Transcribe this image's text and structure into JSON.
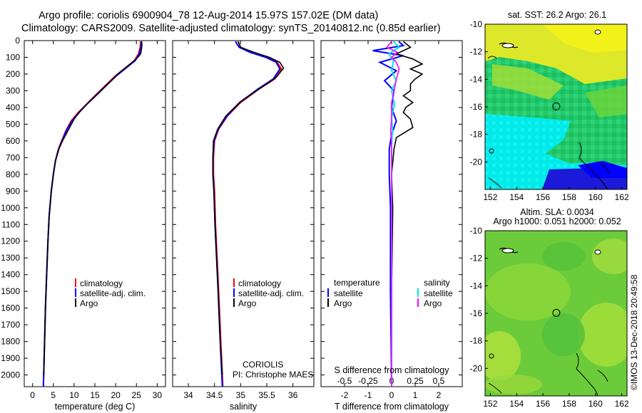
{
  "header": {
    "title_line1": "Argo profile: coriolis 6900904_78 12-Aug-2014 15.97S 157.02E (DM data)",
    "title_line2": "Climatology: CARS2009. Satellite-adjusted climatology: synTS_20140812.nc (0.85d earlier)"
  },
  "colors": {
    "climatology": "#ff0000",
    "satellite": "#0000ff",
    "argo": "#000000",
    "sal_satellite": "#00e5ee",
    "sal_climatology": "#ff00ff"
  },
  "chart_data": [
    {
      "type": "line",
      "name": "temperature-profile",
      "xlabel": "temperature (deg C)",
      "ylabel": "",
      "xlim": [
        -2,
        32
      ],
      "ylim": [
        2070,
        0
      ],
      "x_ticks": [
        "0",
        "5",
        "10",
        "15",
        "20",
        "25",
        "30"
      ],
      "y_ticks": [
        "0",
        "100",
        "200",
        "300",
        "400",
        "500",
        "600",
        "700",
        "800",
        "900",
        "1000",
        "1100",
        "1200",
        "1300",
        "1400",
        "1500",
        "1600",
        "1700",
        "1800",
        "1900",
        "2000"
      ],
      "legend": [
        "climatology",
        "satellite-adj. clim.",
        "Argo"
      ],
      "series": [
        {
          "name": "climatology",
          "color": "#ff0000",
          "points": [
            [
              26.0,
              5
            ],
            [
              25.9,
              40
            ],
            [
              25.5,
              80
            ],
            [
              24.5,
              120
            ],
            [
              22.5,
              160
            ],
            [
              20.0,
              210
            ],
            [
              17.5,
              270
            ],
            [
              15.0,
              330
            ],
            [
              13.0,
              380
            ],
            [
              11.0,
              430
            ],
            [
              9.3,
              480
            ],
            [
              8.0,
              540
            ],
            [
              7.0,
              600
            ],
            [
              6.2,
              650
            ],
            [
              5.5,
              720
            ],
            [
              5.0,
              800
            ],
            [
              4.5,
              900
            ],
            [
              4.0,
              1050
            ],
            [
              3.7,
              1200
            ],
            [
              3.4,
              1400
            ],
            [
              3.1,
              1600
            ],
            [
              2.9,
              1800
            ],
            [
              2.6,
              2070
            ]
          ]
        },
        {
          "name": "satellite-adj. clim.",
          "color": "#0000ff",
          "points": [
            [
              26.2,
              5
            ],
            [
              26.1,
              40
            ],
            [
              25.7,
              80
            ],
            [
              24.7,
              120
            ],
            [
              22.7,
              160
            ],
            [
              20.2,
              210
            ],
            [
              17.7,
              270
            ],
            [
              15.2,
              330
            ],
            [
              13.1,
              380
            ],
            [
              11.2,
              430
            ],
            [
              9.5,
              480
            ],
            [
              8.1,
              540
            ],
            [
              7.1,
              600
            ],
            [
              6.3,
              650
            ],
            [
              5.5,
              720
            ],
            [
              5.0,
              800
            ],
            [
              4.5,
              900
            ],
            [
              4.0,
              1050
            ],
            [
              3.7,
              1200
            ],
            [
              3.4,
              1400
            ],
            [
              3.1,
              1600
            ],
            [
              2.9,
              1800
            ],
            [
              2.6,
              2070
            ]
          ]
        },
        {
          "name": "Argo",
          "color": "#000000",
          "points": [
            [
              26.3,
              5
            ],
            [
              26.3,
              40
            ],
            [
              26.0,
              80
            ],
            [
              25.0,
              110
            ],
            [
              23.5,
              140
            ],
            [
              21.0,
              190
            ],
            [
              18.5,
              250
            ],
            [
              16.0,
              310
            ],
            [
              13.5,
              370
            ],
            [
              11.5,
              420
            ],
            [
              10.0,
              470
            ],
            [
              8.5,
              540
            ],
            [
              7.2,
              600
            ],
            [
              6.3,
              650
            ],
            [
              5.5,
              720
            ],
            [
              5.0,
              800
            ],
            [
              4.5,
              900
            ],
            [
              4.0,
              1050
            ],
            [
              3.7,
              1200
            ],
            [
              3.4,
              1400
            ],
            [
              3.1,
              1600
            ],
            [
              2.9,
              1800
            ],
            [
              2.7,
              2000
            ]
          ]
        }
      ]
    },
    {
      "type": "line",
      "name": "salinity-profile",
      "xlabel": "salinity",
      "ylabel": "",
      "xlim": [
        33.7,
        36.4
      ],
      "ylim": [
        2070,
        0
      ],
      "x_ticks": [
        "34",
        "34.5",
        "35",
        "35.5",
        "36"
      ],
      "legend": [
        "climatology",
        "satellite-adj. clim.",
        "Argo"
      ],
      "annotations": [
        "CORIOLIS",
        "PI: Christophe MAES"
      ],
      "series": [
        {
          "name": "climatology",
          "color": "#ff0000",
          "points": [
            [
              34.95,
              5
            ],
            [
              35.0,
              40
            ],
            [
              35.2,
              70
            ],
            [
              35.5,
              100
            ],
            [
              35.7,
              130
            ],
            [
              35.78,
              170
            ],
            [
              35.65,
              230
            ],
            [
              35.35,
              290
            ],
            [
              35.0,
              370
            ],
            [
              34.75,
              450
            ],
            [
              34.58,
              530
            ],
            [
              34.5,
              600
            ],
            [
              34.48,
              700
            ],
            [
              34.48,
              800
            ],
            [
              34.5,
              900
            ],
            [
              34.52,
              1100
            ],
            [
              34.55,
              1300
            ],
            [
              34.58,
              1500
            ],
            [
              34.62,
              1800
            ],
            [
              34.66,
              2070
            ]
          ]
        },
        {
          "name": "satellite-adj. clim.",
          "color": "#0000ff",
          "points": [
            [
              34.9,
              5
            ],
            [
              34.97,
              40
            ],
            [
              35.18,
              70
            ],
            [
              35.48,
              100
            ],
            [
              35.68,
              130
            ],
            [
              35.75,
              170
            ],
            [
              35.62,
              230
            ],
            [
              35.33,
              290
            ],
            [
              34.98,
              370
            ],
            [
              34.74,
              450
            ],
            [
              34.57,
              530
            ],
            [
              34.49,
              600
            ],
            [
              34.47,
              700
            ],
            [
              34.47,
              800
            ],
            [
              34.49,
              900
            ],
            [
              34.51,
              1100
            ],
            [
              34.54,
              1300
            ],
            [
              34.57,
              1500
            ],
            [
              34.61,
              1800
            ],
            [
              34.65,
              2070
            ]
          ]
        },
        {
          "name": "Argo",
          "color": "#000000",
          "points": [
            [
              34.95,
              5
            ],
            [
              35.0,
              40
            ],
            [
              35.25,
              70
            ],
            [
              35.55,
              100
            ],
            [
              35.75,
              130
            ],
            [
              35.82,
              165
            ],
            [
              35.68,
              220
            ],
            [
              35.35,
              290
            ],
            [
              34.98,
              370
            ],
            [
              34.72,
              450
            ],
            [
              34.56,
              530
            ],
            [
              34.48,
              600
            ],
            [
              34.47,
              700
            ],
            [
              34.47,
              800
            ],
            [
              34.49,
              900
            ],
            [
              34.51,
              1100
            ],
            [
              34.54,
              1300
            ],
            [
              34.57,
              1500
            ],
            [
              34.61,
              1800
            ],
            [
              34.65,
              2000
            ]
          ]
        }
      ]
    },
    {
      "type": "line",
      "name": "difference-profile",
      "xlabel": "T difference from climatology",
      "xlim": [
        -3,
        3
      ],
      "ylim": [
        2070,
        0
      ],
      "x_ticks": [
        "-2",
        "-1",
        "0",
        "1",
        "2"
      ],
      "top_axis_label": "S difference from climatology",
      "top_axis_ticks": [
        "-0.5",
        "-0.25",
        "0",
        "0.25",
        "0.5"
      ],
      "legend_left_title": "temperature",
      "legend_right_title": "salinity",
      "legend": [
        "satellite",
        "Argo"
      ],
      "series": [
        {
          "name": "temperature satellite",
          "color": "#0000ff",
          "points": [
            [
              0.3,
              5
            ],
            [
              0.5,
              30
            ],
            [
              -0.8,
              60
            ],
            [
              0.5,
              90
            ],
            [
              -0.5,
              130
            ],
            [
              0.2,
              180
            ],
            [
              -0.3,
              240
            ],
            [
              0.1,
              300
            ],
            [
              0.0,
              400
            ],
            [
              0.2,
              480
            ],
            [
              0.0,
              560
            ],
            [
              -0.1,
              650
            ],
            [
              -0.1,
              800
            ],
            [
              -0.05,
              1000
            ],
            [
              -0.05,
              1500
            ],
            [
              0.0,
              2070
            ]
          ]
        },
        {
          "name": "temperature Argo",
          "color": "#000000",
          "points": [
            [
              0.5,
              5
            ],
            [
              0.8,
              40
            ],
            [
              0.2,
              80
            ],
            [
              0.9,
              110
            ],
            [
              1.3,
              140
            ],
            [
              0.8,
              170
            ],
            [
              1.3,
              200
            ],
            [
              1.0,
              230
            ],
            [
              0.8,
              260
            ],
            [
              0.8,
              300
            ],
            [
              0.5,
              330
            ],
            [
              0.9,
              370
            ],
            [
              0.6,
              400
            ],
            [
              0.5,
              430
            ],
            [
              0.8,
              470
            ],
            [
              0.9,
              520
            ],
            [
              0.2,
              580
            ],
            [
              0.1,
              650
            ],
            [
              0.0,
              800
            ],
            [
              0.05,
              1000
            ],
            [
              0.0,
              1500
            ],
            [
              0.0,
              2000
            ]
          ]
        },
        {
          "name": "salinity satellite",
          "color": "#00e5ee",
          "points": [
            [
              0.02,
              5
            ],
            [
              0.08,
              40
            ],
            [
              -0.03,
              80
            ],
            [
              0.02,
              120
            ],
            [
              0.0,
              180
            ],
            [
              0.05,
              240
            ],
            [
              0.0,
              300
            ],
            [
              0.03,
              380
            ],
            [
              0.0,
              460
            ],
            [
              0.01,
              540
            ],
            [
              0.0,
              620
            ],
            [
              0.0,
              800
            ],
            [
              0.0,
              1200
            ],
            [
              0.0,
              2070
            ]
          ]
        },
        {
          "name": "salinity Argo",
          "color": "#ff00ff",
          "points": [
            [
              0.0,
              5
            ],
            [
              -0.05,
              40
            ],
            [
              0.06,
              70
            ],
            [
              0.0,
              100
            ],
            [
              0.05,
              130
            ],
            [
              0.08,
              170
            ],
            [
              0.05,
              230
            ],
            [
              0.03,
              290
            ],
            [
              0.0,
              370
            ],
            [
              0.0,
              460
            ],
            [
              -0.01,
              540
            ],
            [
              0.0,
              620
            ],
            [
              0.0,
              800
            ],
            [
              0.0,
              1200
            ],
            [
              0.0,
              2070
            ]
          ]
        }
      ]
    },
    {
      "type": "heatmap",
      "name": "sst-map",
      "title": "sat. SST: 26.2 Argo: 26.1",
      "x_ticks": [
        "152",
        "154",
        "156",
        "158",
        "160",
        "162"
      ],
      "y_ticks": [
        "-10",
        "-12",
        "-14",
        "-16",
        "-18",
        "-20"
      ],
      "xlim": [
        151.6,
        162.4
      ],
      "ylim": [
        -22,
        -10
      ],
      "marker": [
        157.02,
        -15.97
      ]
    },
    {
      "type": "heatmap",
      "name": "sla-map",
      "title_line1": "Altim. SLA: 0.0034",
      "title_line2": "Argo h1000: 0.051 h2000: 0.052",
      "x_ticks": [
        "152",
        "154",
        "156",
        "158",
        "160",
        "162"
      ],
      "y_ticks": [
        "-10",
        "-12",
        "-14",
        "-16",
        "-18",
        "-20"
      ],
      "xlim": [
        151.6,
        162.4
      ],
      "ylim": [
        -22,
        -10
      ],
      "marker": [
        157.02,
        -15.97
      ]
    }
  ],
  "footer": {
    "credit": "©IMOS 13-Dec-2018 20:49:58"
  }
}
